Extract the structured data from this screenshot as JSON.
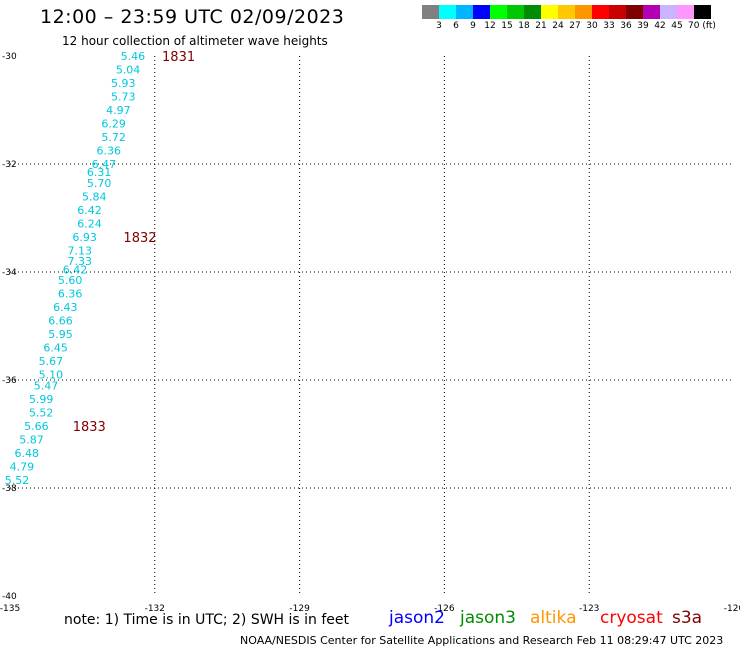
{
  "header": {
    "title": "12:00 – 23:59 UTC 02/09/2023",
    "subtitle": "12 hour collection of altimeter wave heights"
  },
  "colorbar": {
    "colors": [
      "#808080",
      "#00ffff",
      "#00b4ff",
      "#0000ff",
      "#00ff00",
      "#00c800",
      "#008c00",
      "#ffff00",
      "#ffc800",
      "#ff9600",
      "#ff0000",
      "#c80000",
      "#800000",
      "#b400b4",
      "#c8b4ff",
      "#ff96ff",
      "#000000"
    ],
    "ticks": [
      "3",
      "6",
      "9",
      "12",
      "15",
      "18",
      "21",
      "24",
      "27",
      "30",
      "33",
      "36",
      "39",
      "42",
      "45",
      "70 (ft)"
    ]
  },
  "chart_data": {
    "type": "scatter",
    "title": "12:00 – 23:59 UTC 02/09/2023",
    "subtitle": "12 hour collection of altimeter wave heights",
    "xlim": [
      -135,
      -120
    ],
    "ylim": [
      -40,
      -30
    ],
    "x_ticks": [
      "-135",
      "-132",
      "-129",
      "-126",
      "-123",
      "-120"
    ],
    "y_ticks": [
      "-30",
      "-32",
      "-34",
      "-36",
      "-38",
      "-40"
    ],
    "grid": true,
    "label_color": "#00c8dc",
    "time_color": "#800000",
    "series": [
      {
        "name": "cryosat",
        "points": [
          {
            "x": -132.2,
            "y": -30.0,
            "swh": "5.46"
          },
          {
            "x": -132.3,
            "y": -30.25,
            "swh": "5.04"
          },
          {
            "x": -132.4,
            "y": -30.5,
            "swh": "5.93"
          },
          {
            "x": -132.4,
            "y": -30.75,
            "swh": "5.73"
          },
          {
            "x": -132.5,
            "y": -31.0,
            "swh": "4.97"
          },
          {
            "x": -132.6,
            "y": -31.25,
            "swh": "6.29"
          },
          {
            "x": -132.6,
            "y": -31.5,
            "swh": "5.72"
          },
          {
            "x": -132.7,
            "y": -31.75,
            "swh": "6.36"
          },
          {
            "x": -132.8,
            "y": -32.0,
            "swh": "6.47"
          },
          {
            "x": -132.9,
            "y": -32.15,
            "swh": "6.31"
          },
          {
            "x": -132.9,
            "y": -32.35,
            "swh": "5.70"
          },
          {
            "x": -133.0,
            "y": -32.6,
            "swh": "5.84"
          },
          {
            "x": -133.1,
            "y": -32.85,
            "swh": "6.42"
          },
          {
            "x": -133.1,
            "y": -33.1,
            "swh": "6.24"
          },
          {
            "x": -133.2,
            "y": -33.35,
            "swh": "6.93"
          },
          {
            "x": -133.3,
            "y": -33.6,
            "swh": "7.13"
          },
          {
            "x": -133.3,
            "y": -33.8,
            "swh": "7.33"
          },
          {
            "x": -133.4,
            "y": -33.95,
            "swh": "6.42"
          },
          {
            "x": -133.5,
            "y": -34.15,
            "swh": "5.60"
          },
          {
            "x": -133.5,
            "y": -34.4,
            "swh": "6.36"
          },
          {
            "x": -133.6,
            "y": -34.65,
            "swh": "6.43"
          },
          {
            "x": -133.7,
            "y": -34.9,
            "swh": "6.66"
          },
          {
            "x": -133.7,
            "y": -35.15,
            "swh": "5.95"
          },
          {
            "x": -133.8,
            "y": -35.4,
            "swh": "6.45"
          },
          {
            "x": -133.9,
            "y": -35.65,
            "swh": "5.67"
          },
          {
            "x": -133.9,
            "y": -35.9,
            "swh": "5.10"
          },
          {
            "x": -134.0,
            "y": -36.1,
            "swh": "5.47"
          },
          {
            "x": -134.1,
            "y": -36.35,
            "swh": "5.99"
          },
          {
            "x": -134.1,
            "y": -36.6,
            "swh": "5.52"
          },
          {
            "x": -134.2,
            "y": -36.85,
            "swh": "5.66"
          },
          {
            "x": -134.3,
            "y": -37.1,
            "swh": "5.87"
          },
          {
            "x": -134.4,
            "y": -37.35,
            "swh": "6.48"
          },
          {
            "x": -134.5,
            "y": -37.6,
            "swh": "4.79"
          },
          {
            "x": -134.6,
            "y": -37.85,
            "swh": "5.52"
          }
        ]
      }
    ],
    "time_marks": [
      {
        "x": -131.85,
        "y": -30.0,
        "label": "1831"
      },
      {
        "x": -132.65,
        "y": -33.35,
        "label": "1832"
      },
      {
        "x": -133.7,
        "y": -36.85,
        "label": "1833"
      }
    ]
  },
  "footer": {
    "note": "note:  1) Time is in UTC; 2) SWH is in feet",
    "credit": "NOAA/NESDIS Center for Satellite Applications and Research    Feb 11 08:29:47 UTC 2023"
  },
  "satellites": [
    {
      "name": "jason2",
      "color": "#0000ff"
    },
    {
      "name": "jason3",
      "color": "#008c00"
    },
    {
      "name": "altika",
      "color": "#ff9600"
    },
    {
      "name": "cryosat",
      "color": "#ff0000"
    },
    {
      "name": "s3a",
      "color": "#800000"
    }
  ]
}
